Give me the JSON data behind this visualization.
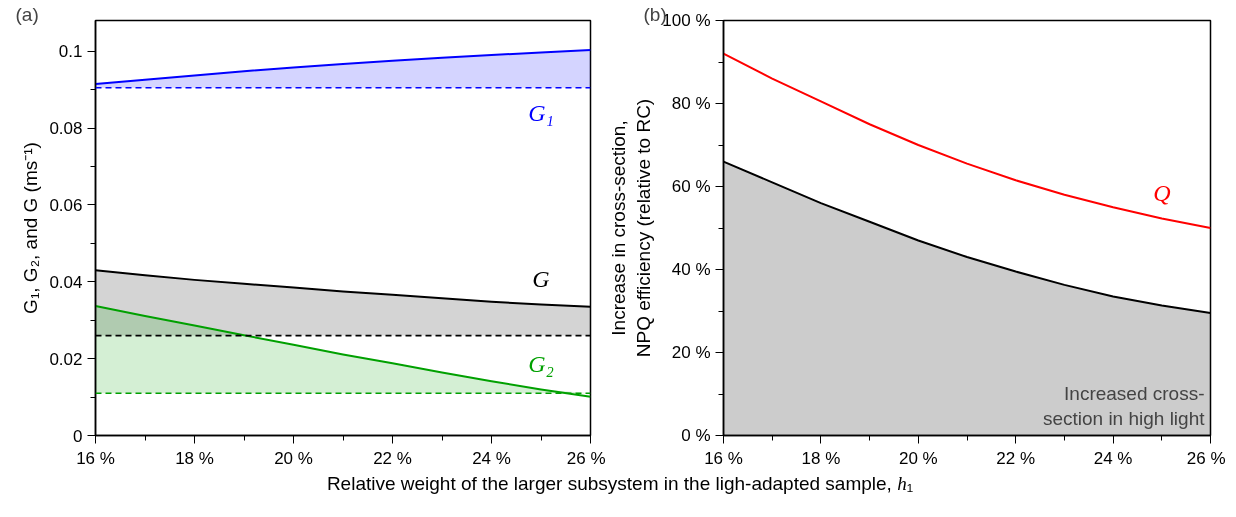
{
  "chart_data": [
    {
      "type": "line",
      "title": "(a)",
      "xlabel": "Relative weight of the larger subsystem in the ligh-adapted sample, h₁",
      "ylabel": "G₁, G₂, and G (ms⁻¹)",
      "x": [
        16,
        17,
        18,
        19,
        20,
        21,
        22,
        23,
        24,
        25,
        26
      ],
      "series": [
        {
          "name": "G₁",
          "color": "#0000ff",
          "values": [
            0.0915,
            0.0926,
            0.0937,
            0.0948,
            0.0958,
            0.0967,
            0.0975,
            0.0983,
            0.099,
            0.0997,
            0.1003
          ],
          "lower": [
            0.0905,
            0.0905,
            0.0905,
            0.0905,
            0.0905,
            0.0905,
            0.0905,
            0.0905,
            0.0905,
            0.0905,
            0.0905
          ],
          "upper": [
            0.0915,
            0.0926,
            0.0937,
            0.0948,
            0.0958,
            0.0967,
            0.0975,
            0.0983,
            0.099,
            0.0997,
            0.1003
          ]
        },
        {
          "name": "G",
          "color": "#000000",
          "values": [
            0.043,
            0.0417,
            0.0405,
            0.0395,
            0.0385,
            0.0375,
            0.0366,
            0.0357,
            0.0348,
            0.0341,
            0.0335
          ],
          "lower": [
            0.026,
            0.026,
            0.026,
            0.026,
            0.026,
            0.026,
            0.026,
            0.026,
            0.026,
            0.026,
            0.026
          ],
          "upper": [
            0.043,
            0.0417,
            0.0405,
            0.0395,
            0.0385,
            0.0375,
            0.0366,
            0.0357,
            0.0348,
            0.0341,
            0.0335
          ]
        },
        {
          "name": "G₂",
          "color": "#00a000",
          "values": [
            0.0337,
            0.0311,
            0.0286,
            0.0261,
            0.0236,
            0.0211,
            0.0188,
            0.0164,
            0.0141,
            0.012,
            0.0101
          ],
          "lower": [
            0.011,
            0.011,
            0.011,
            0.011,
            0.011,
            0.011,
            0.011,
            0.011,
            0.011,
            0.011,
            0.011
          ],
          "upper": [
            0.0337,
            0.0311,
            0.0286,
            0.0261,
            0.0236,
            0.0211,
            0.0188,
            0.0164,
            0.0141,
            0.012,
            0.011
          ]
        }
      ],
      "ref_lines": [
        {
          "axis": "y",
          "value": 0.0905,
          "color": "#0000ff",
          "line_style": "dashed"
        },
        {
          "axis": "y",
          "value": 0.026,
          "color": "#000000",
          "line_style": "dashed"
        },
        {
          "axis": "y",
          "value": 0.011,
          "color": "#00a000",
          "line_style": "dashed"
        }
      ],
      "xlim": [
        16,
        26
      ],
      "ylim": [
        0,
        0.108
      ],
      "xticks": [
        {
          "value": 16,
          "label": "16 %"
        },
        {
          "value": 17,
          "label": null
        },
        {
          "value": 18,
          "label": "18 %"
        },
        {
          "value": 19,
          "label": null
        },
        {
          "value": 20,
          "label": "20 %"
        },
        {
          "value": 21,
          "label": null
        },
        {
          "value": 22,
          "label": "22 %"
        },
        {
          "value": 23,
          "label": null
        },
        {
          "value": 24,
          "label": "24 %"
        },
        {
          "value": 25,
          "label": null
        },
        {
          "value": 26,
          "label": "26 %"
        }
      ],
      "yticks": [
        0,
        {
          "value": 0.01,
          "label": null
        },
        0.02,
        {
          "value": 0.03,
          "label": null
        },
        0.04,
        {
          "value": 0.05,
          "label": null
        },
        0.06,
        {
          "value": 0.07,
          "label": null
        },
        0.08,
        {
          "value": 0.09,
          "label": null
        },
        0.1
      ],
      "grid": false
    },
    {
      "type": "line",
      "title": "(b)",
      "ylabel": "Increase in cross-section,\nNPQ efficiency (relative to RC)",
      "x": [
        16,
        17,
        18,
        19,
        20,
        21,
        22,
        23,
        24,
        25,
        26
      ],
      "series": [
        {
          "name": "Q",
          "color": "#ff0000",
          "values": [
            92,
            86,
            80.5,
            75,
            70,
            65.5,
            61.5,
            58,
            55,
            52.3,
            50
          ]
        },
        {
          "type": "area",
          "color": "#000000",
          "values": [
            66,
            61,
            56,
            51.5,
            47,
            43,
            39.5,
            36.3,
            33.5,
            31.3,
            29.5
          ]
        }
      ],
      "annotations": [
        "Increased cross-\nsection in high light"
      ],
      "xlim": [
        16,
        26
      ],
      "ylim": [
        0,
        100
      ],
      "xticks": [
        {
          "value": 16,
          "label": "16 %"
        },
        {
          "value": 17,
          "label": null
        },
        {
          "value": 18,
          "label": "18 %"
        },
        {
          "value": 19,
          "label": null
        },
        {
          "value": 20,
          "label": "20 %"
        },
        {
          "value": 21,
          "label": null
        },
        {
          "value": 22,
          "label": "22 %"
        },
        {
          "value": 23,
          "label": null
        },
        {
          "value": 24,
          "label": "24 %"
        },
        {
          "value": 25,
          "label": null
        },
        {
          "value": 26,
          "label": "26 %"
        }
      ],
      "yticks": [
        {
          "value": 0,
          "label": "0 %"
        },
        {
          "value": 10,
          "label": null
        },
        {
          "value": 20,
          "label": "20 %"
        },
        {
          "value": 30,
          "label": null
        },
        {
          "value": 40,
          "label": "40 %"
        },
        {
          "value": 50,
          "label": null
        },
        {
          "value": 60,
          "label": "60 %"
        },
        {
          "value": 70,
          "label": null
        },
        {
          "value": 80,
          "label": "80 %"
        },
        {
          "value": 90,
          "label": null
        },
        {
          "value": 100,
          "label": "100 %"
        }
      ],
      "grid": false
    }
  ]
}
